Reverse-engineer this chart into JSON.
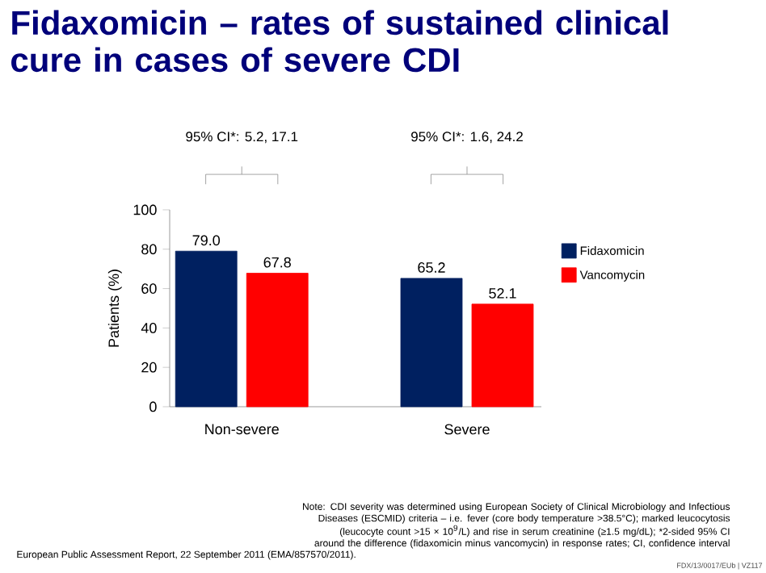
{
  "chart_data": {
    "type": "bar",
    "title": "Fidaxomicin – rates of sustained clinical cure in cases of severe CDI",
    "ylabel": "Patients (%)",
    "categories": [
      "Non-severe",
      "Severe"
    ],
    "series": [
      {
        "name": "Fidaxomicin",
        "color": "#002060",
        "values": [
          79.0,
          65.2
        ],
        "value_labels": [
          "79.0",
          "65.2"
        ]
      },
      {
        "name": "Vancomycin",
        "color": "#ff0000",
        "values": [
          67.8,
          52.1
        ],
        "value_labels": [
          "67.8",
          "52.1"
        ]
      }
    ],
    "ylim": [
      0,
      100
    ],
    "yticks": [
      0,
      20,
      40,
      60,
      80,
      100
    ],
    "legend": "right",
    "grid": false,
    "annotations": [
      "95% CI*: 5.2, 17.1",
      "95% CI*: 1.6, 24.2",
      "Note: CDI severity was determined using European Society of Clinical Microbiology and Infectious Diseases  (ESCMID) criteria – i.e. fever (core body temperature >38.5°C); marked leucocytosis (leucocyte count >15 × 10$^{9}$/L) and rise in serum creatinine (≥1.5 mg/dL); *2-sided 95% CI around the difference (fidaxomicin minus vancomycin) in response rates; CI, confidence interval",
      "European Public Assessment Report, 22 September 2011 (EMA/857570/2011).",
      "FDX/13/0017/EUb | VZ117"
    ]
  }
}
